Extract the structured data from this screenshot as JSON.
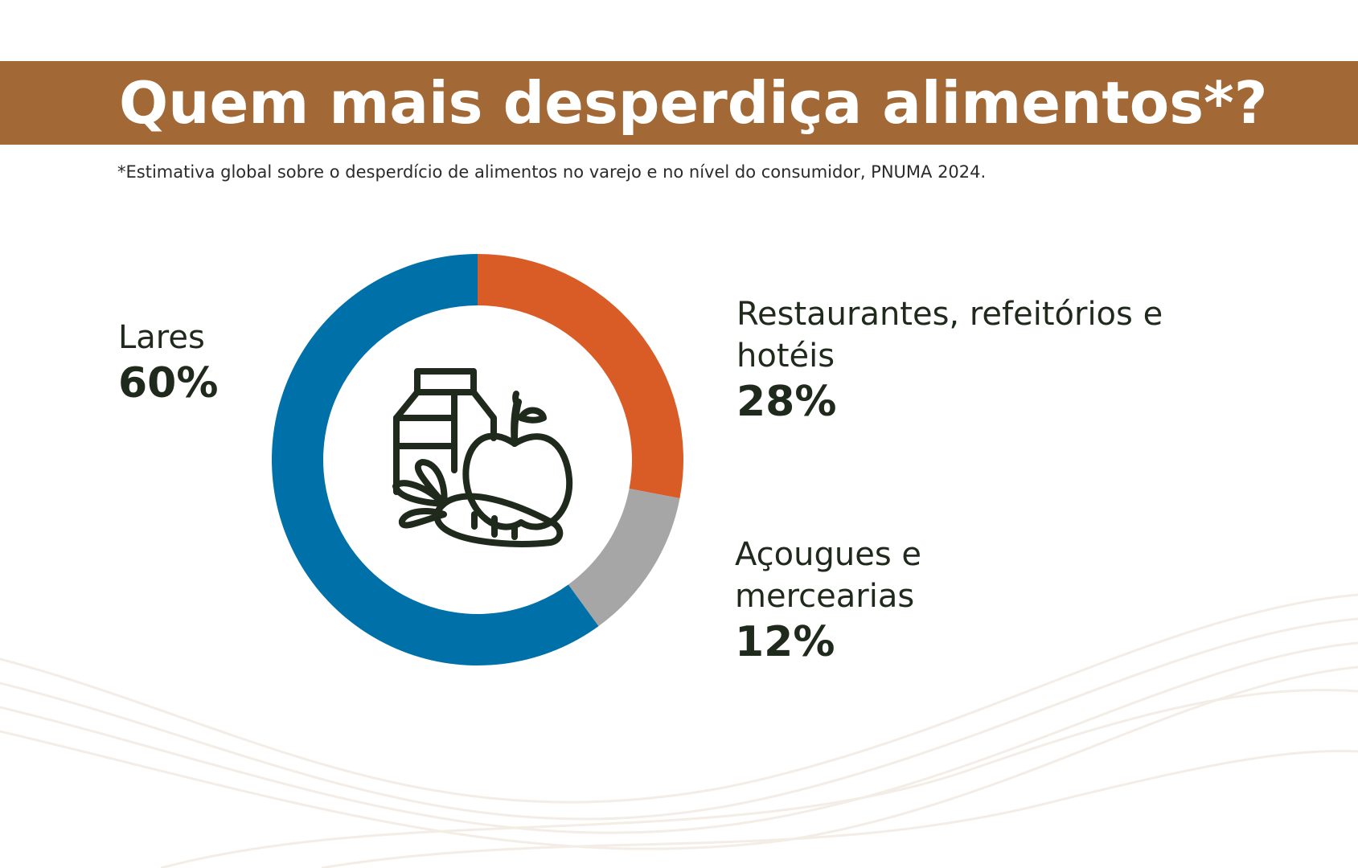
{
  "header": {
    "title": "Quem mais desperdiça alimentos*?",
    "footnote": "*Estimativa global sobre o desperdício de alimentos no varejo e no nível do consumidor, PNUMA 2024."
  },
  "colors": {
    "banner": "#a26835",
    "lares": "#0070a8",
    "restaurantes": "#d95b26",
    "acougues": "#a6a6a6",
    "icon": "#1f2a1c"
  },
  "center_icon": "groceries-icon",
  "chart_data": {
    "type": "pie",
    "donut": true,
    "title": "Quem mais desperdiça alimentos*?",
    "slices": [
      {
        "name": "Restaurantes, refeitórios e hotéis",
        "value": 28,
        "label": "28%",
        "color": "#d95b26"
      },
      {
        "name": "Açougues e mercearias",
        "value": 12,
        "label": "12%",
        "color": "#a6a6a6"
      },
      {
        "name": "Lares",
        "value": 60,
        "label": "60%",
        "color": "#0070a8"
      }
    ]
  }
}
